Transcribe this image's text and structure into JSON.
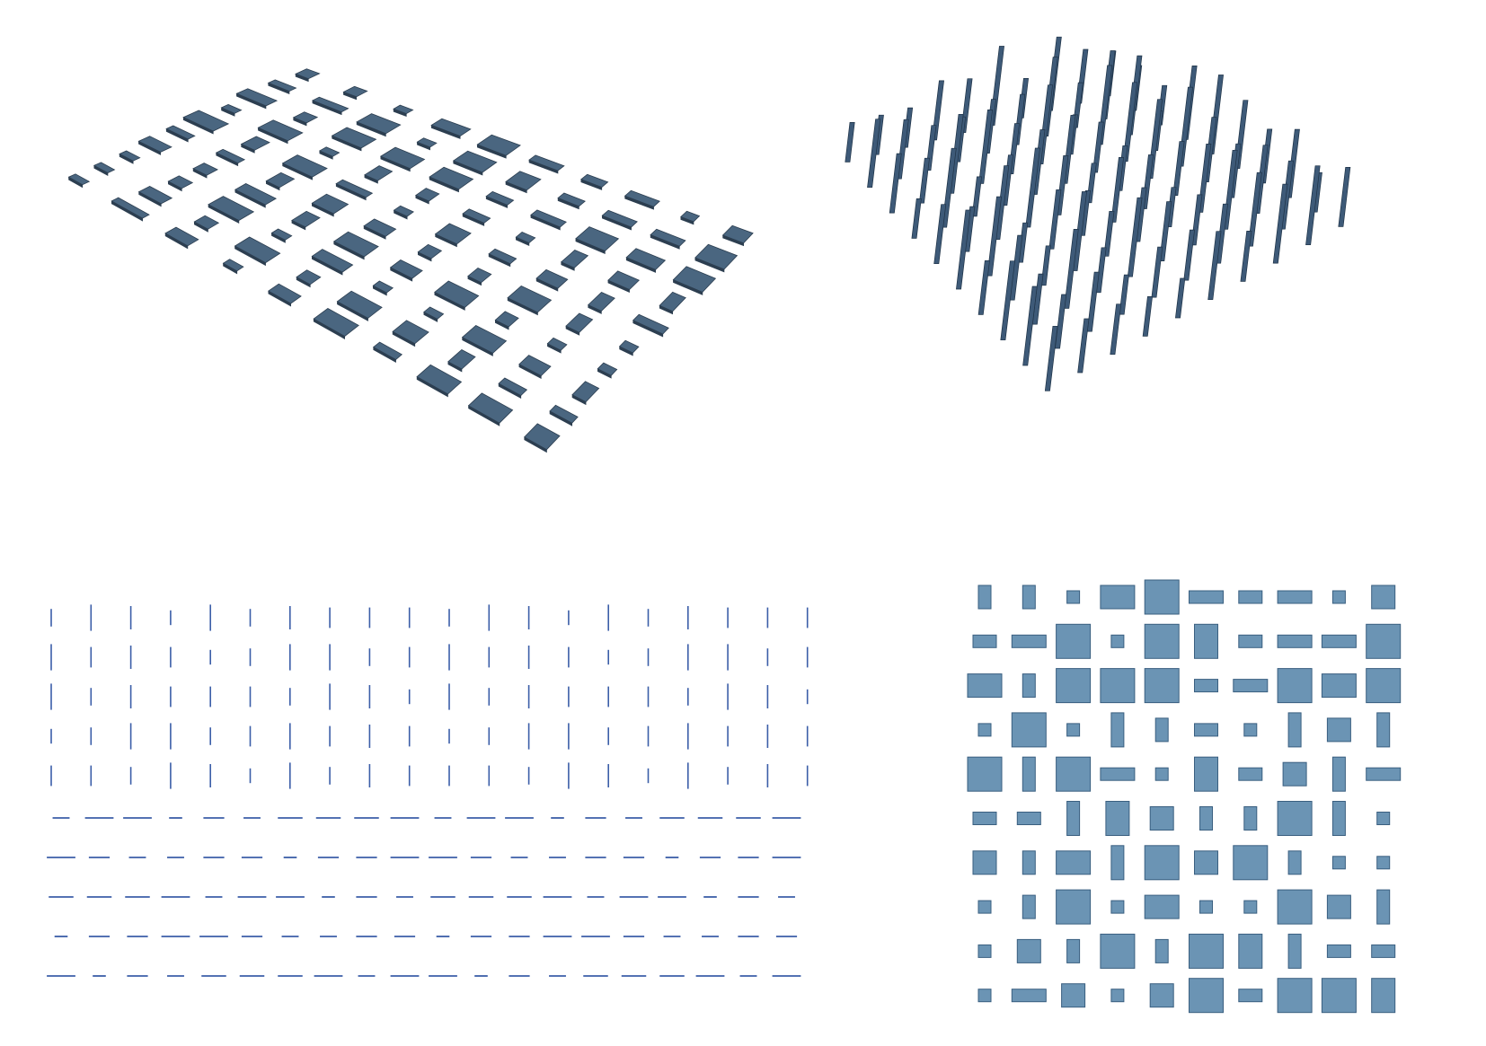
{
  "figure": {
    "description_free": true,
    "colors": {
      "slab_top": "#4a6680",
      "slab_edge": "#2c3e50",
      "rod": "#3e5a78",
      "rod_edge": "#1f3347",
      "plan_fill": "#6b94b4",
      "plan_edge": "#3a5f80",
      "line": "#3b5ea8"
    },
    "grid": {
      "rows": 10,
      "cols": 10
    },
    "plan_sizes": [
      [
        [
          1,
          2
        ],
        [
          1,
          2
        ],
        [
          1,
          1
        ],
        [
          3,
          2
        ],
        [
          3,
          3
        ],
        [
          3,
          1
        ],
        [
          2,
          1
        ],
        [
          3,
          1
        ],
        [
          1,
          1
        ],
        [
          2,
          2
        ]
      ],
      [
        [
          2,
          1
        ],
        [
          3,
          1
        ],
        [
          3,
          3
        ],
        [
          1,
          1
        ],
        [
          3,
          3
        ],
        [
          2,
          3
        ],
        [
          2,
          1
        ],
        [
          3,
          1
        ],
        [
          3,
          1
        ],
        [
          3,
          3
        ]
      ],
      [
        [
          3,
          2
        ],
        [
          1,
          2
        ],
        [
          3,
          3
        ],
        [
          3,
          3
        ],
        [
          3,
          3
        ],
        [
          2,
          1
        ],
        [
          3,
          1
        ],
        [
          3,
          3
        ],
        [
          3,
          2
        ],
        [
          3,
          3
        ]
      ],
      [
        [
          1,
          1
        ],
        [
          3,
          3
        ],
        [
          1,
          1
        ],
        [
          1,
          3
        ],
        [
          1,
          2
        ],
        [
          2,
          1
        ],
        [
          1,
          1
        ],
        [
          1,
          3
        ],
        [
          2,
          2
        ],
        [
          1,
          3
        ]
      ],
      [
        [
          3,
          3
        ],
        [
          1,
          3
        ],
        [
          3,
          3
        ],
        [
          3,
          1
        ],
        [
          1,
          1
        ],
        [
          2,
          3
        ],
        [
          2,
          1
        ],
        [
          2,
          2
        ],
        [
          1,
          3
        ],
        [
          3,
          1
        ]
      ],
      [
        [
          2,
          1
        ],
        [
          2,
          1
        ],
        [
          1,
          3
        ],
        [
          2,
          3
        ],
        [
          2,
          2
        ],
        [
          1,
          2
        ],
        [
          1,
          2
        ],
        [
          3,
          3
        ],
        [
          1,
          3
        ],
        [
          1,
          1
        ]
      ],
      [
        [
          2,
          2
        ],
        [
          1,
          2
        ],
        [
          3,
          2
        ],
        [
          1,
          3
        ],
        [
          3,
          3
        ],
        [
          2,
          2
        ],
        [
          3,
          3
        ],
        [
          1,
          2
        ],
        [
          1,
          1
        ],
        [
          1,
          1
        ]
      ],
      [
        [
          1,
          1
        ],
        [
          1,
          2
        ],
        [
          3,
          3
        ],
        [
          1,
          1
        ],
        [
          3,
          2
        ],
        [
          1,
          1
        ],
        [
          1,
          1
        ],
        [
          3,
          3
        ],
        [
          2,
          2
        ],
        [
          1,
          3
        ]
      ],
      [
        [
          1,
          1
        ],
        [
          2,
          2
        ],
        [
          1,
          2
        ],
        [
          3,
          3
        ],
        [
          1,
          2
        ],
        [
          3,
          3
        ],
        [
          2,
          3
        ],
        [
          1,
          3
        ],
        [
          2,
          1
        ],
        [
          2,
          1
        ]
      ],
      [
        [
          1,
          1
        ],
        [
          3,
          1
        ],
        [
          2,
          2
        ],
        [
          1,
          1
        ],
        [
          2,
          2
        ],
        [
          3,
          3
        ],
        [
          2,
          1
        ],
        [
          3,
          3
        ],
        [
          3,
          3
        ],
        [
          2,
          3
        ]
      ]
    ],
    "elevation_vertical": {
      "cols": 20,
      "rows": 5
    },
    "elevation_horizontal": {
      "rows": 5,
      "segments": 20
    }
  }
}
